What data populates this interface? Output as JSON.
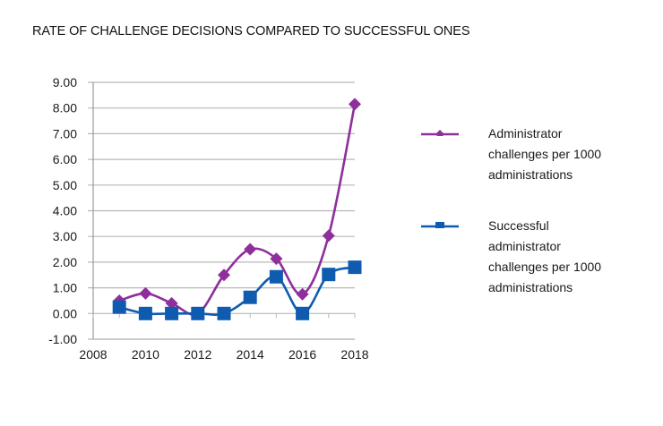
{
  "chart_data": {
    "type": "line",
    "title": "RATE OF CHALLENGE DECISIONS COMPARED TO SUCCESSFUL ONES",
    "xlabel": "",
    "ylabel": "",
    "xlim": [
      2008,
      2018
    ],
    "ylim": [
      -1,
      9
    ],
    "x_ticks": [
      2008,
      2010,
      2012,
      2014,
      2016,
      2018
    ],
    "x_tick_labels": [
      "2008",
      "2010",
      "2012",
      "2014",
      "2016",
      "2018"
    ],
    "y_ticks": [
      -1,
      0,
      1,
      2,
      3,
      4,
      5,
      6,
      7,
      8,
      9
    ],
    "y_tick_labels": [
      "-1.00",
      "0.00",
      "1.00",
      "2.00",
      "3.00",
      "4.00",
      "5.00",
      "6.00",
      "7.00",
      "8.00",
      "9.00"
    ],
    "grid": "horizontal",
    "legend_position": "right",
    "x": [
      2009,
      2010,
      2011,
      2012,
      2013,
      2014,
      2015,
      2016,
      2017,
      2018
    ],
    "series": [
      {
        "name": "Administrator challenges per 1000 administrations",
        "legend_lines": [
          "Administrator",
          "challenges per 1000",
          "administrations"
        ],
        "color": "#8e2f9c",
        "marker": "diamond",
        "smooth": true,
        "values": [
          0.5,
          0.78,
          0.4,
          0.0,
          1.5,
          2.5,
          2.13,
          0.75,
          3.03,
          8.15
        ]
      },
      {
        "name": "Successful administrator challenges per 1000 administrations",
        "legend_lines": [
          "Successful",
          "administrator",
          "challenges per 1000",
          "administrations"
        ],
        "color": "#0f5bb0",
        "marker": "square",
        "smooth": true,
        "values": [
          0.25,
          0.0,
          0.0,
          0.0,
          0.0,
          0.63,
          1.43,
          0.0,
          1.52,
          1.8
        ]
      }
    ]
  }
}
